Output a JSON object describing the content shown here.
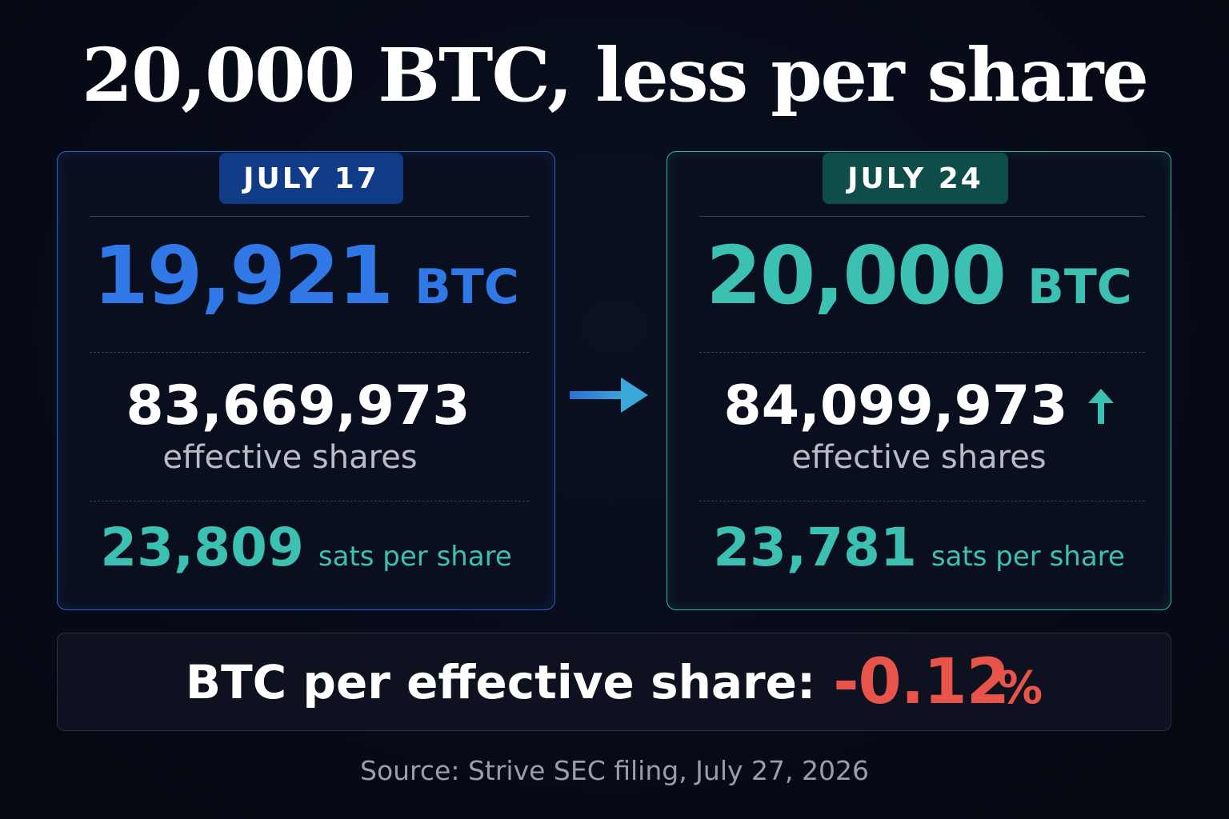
{
  "title": "20,000 BTC, less per share",
  "cards": {
    "left": {
      "date": "JULY 17",
      "btc_value": "19,921",
      "btc_unit": "BTC",
      "shares_value": "83,669,973",
      "shares_label": "effective shares",
      "sats_value": "23,809",
      "sats_label": "sats per share"
    },
    "right": {
      "date": "JULY 24",
      "btc_value": "20,000",
      "btc_unit": "BTC",
      "shares_value": "84,099,973",
      "shares_icon": "arrow-up-icon",
      "shares_label": "effective shares",
      "sats_value": "23,781",
      "sats_label": "sats per share"
    }
  },
  "transition_icon": "arrow-right-icon",
  "summary": {
    "label": "BTC per effective share:",
    "value": "-0.12",
    "unit": "%"
  },
  "source": "Source: Strive SEC filing, July 27, 2026",
  "colors": {
    "left_accent": "#2f78e6",
    "right_accent": "#3cc0b1",
    "negative": "#e8544a",
    "background": "#070b18"
  }
}
